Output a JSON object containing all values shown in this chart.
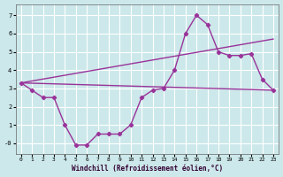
{
  "background_color": "#cce8ea",
  "grid_color": "#b8dde0",
  "line_color": "#993399",
  "xlim": [
    -0.5,
    23.5
  ],
  "ylim": [
    -0.6,
    7.6
  ],
  "yticks": [
    0,
    1,
    2,
    3,
    4,
    5,
    6,
    7
  ],
  "xticks": [
    0,
    1,
    2,
    3,
    4,
    5,
    6,
    7,
    8,
    9,
    10,
    11,
    12,
    13,
    14,
    15,
    16,
    17,
    18,
    19,
    20,
    21,
    22,
    23
  ],
  "xlabel": "Windchill (Refroidissement éolien,°C)",
  "line1_x": [
    0,
    1,
    2,
    3,
    4,
    5,
    6,
    7,
    8,
    9,
    10,
    11,
    12,
    13,
    14,
    15,
    16,
    17,
    18,
    19,
    20,
    21,
    22,
    23
  ],
  "line1_y": [
    3.3,
    2.9,
    2.5,
    2.5,
    1.0,
    -0.1,
    -0.1,
    0.5,
    0.5,
    0.5,
    1.0,
    2.5,
    2.9,
    3.0,
    4.0,
    6.0,
    7.0,
    6.5,
    5.0,
    4.8,
    4.8,
    4.9,
    3.5,
    2.9
  ],
  "line2_x": [
    0,
    23
  ],
  "line2_y": [
    3.3,
    2.9
  ],
  "line3_x": [
    0,
    23
  ],
  "line3_y": [
    3.3,
    5.7
  ],
  "tick_fontsize": 5,
  "xlabel_fontsize": 5.5
}
